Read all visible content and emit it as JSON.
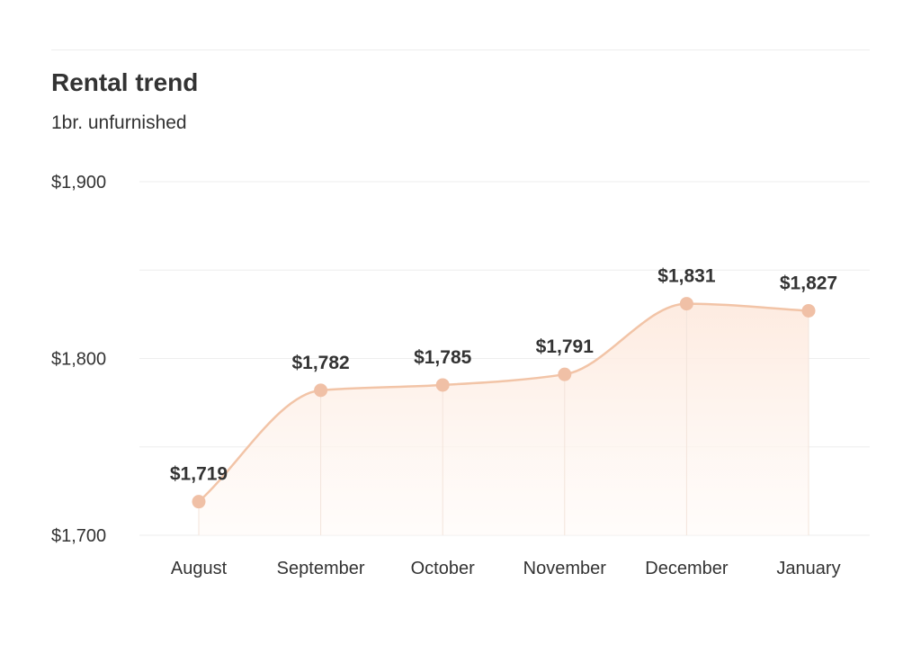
{
  "title": "Rental trend",
  "subtitle": "1br. unfurnished",
  "colors": {
    "line": "#f2c4a7",
    "marker": "#f0c0a6",
    "fill_top": "#fde9dd",
    "fill_bottom": "#fffaf7",
    "grid": "#eeeeee",
    "text": "#333333"
  },
  "chart_data": {
    "type": "area",
    "title": "Rental trend",
    "subtitle": "1br. unfurnished",
    "categories": [
      "August",
      "September",
      "October",
      "November",
      "December",
      "January"
    ],
    "values": [
      1719,
      1782,
      1785,
      1791,
      1831,
      1827
    ],
    "data_labels": [
      "$1,719",
      "$1,782",
      "$1,785",
      "$1,791",
      "$1,831",
      "$1,827"
    ],
    "y_ticks": [
      1700,
      1800,
      1900
    ],
    "y_tick_labels": [
      "$1,700",
      "$1,800",
      "$1,900"
    ],
    "ylim": [
      1700,
      1900
    ],
    "xlabel": "",
    "ylabel": "",
    "grid": true,
    "smooth": true
  }
}
